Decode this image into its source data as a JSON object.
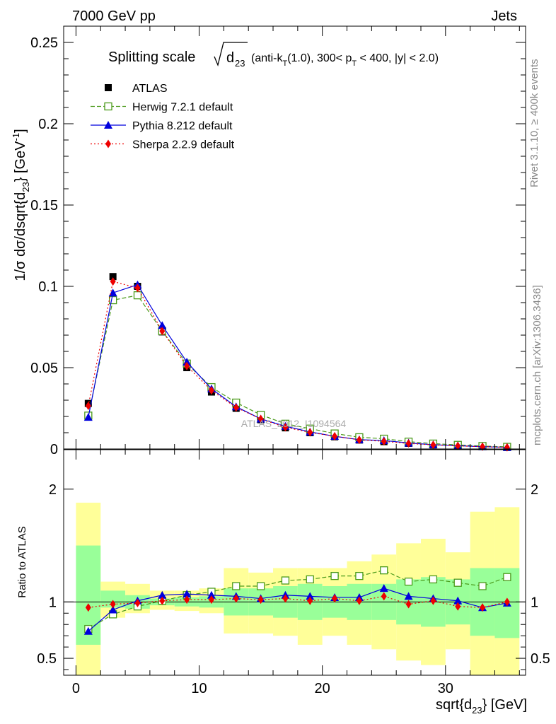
{
  "header": {
    "left": "7000 GeV pp",
    "right": "Jets"
  },
  "side_labels": {
    "rivet": "Rivet 3.1.10, ≥ 400k events",
    "mcplots": "mcplots.cern.ch [arXiv:1306.3436]"
  },
  "watermark": "ATLAS_2012_I1094564",
  "title": {
    "main": "Splitting scale",
    "radical_var": "d",
    "radical_sub": "23",
    "cuts_a": "(anti-k",
    "cuts_a_sub": "T",
    "cuts_b": "(1.0), 300< p",
    "cuts_b_sub": "T",
    "cuts_c": " < 400, |y| < 2.0)"
  },
  "axes": {
    "y_main_label_a": "1/σ dσ/dsqrt{d",
    "y_main_label_sub": "23",
    "y_main_label_b": "} [GeV",
    "y_main_label_sup": "-1",
    "y_main_label_c": "]",
    "y_ratio_label": "Ratio to ATLAS",
    "x_label_a": "sqrt{d",
    "x_label_sub": "23",
    "x_label_b": "} [GeV]"
  },
  "legend": [
    {
      "label": "ATLAS",
      "color": "#000000",
      "marker": "filled-square",
      "line": "none"
    },
    {
      "label": "Herwig 7.2.1 default",
      "color": "#4a9a1a",
      "marker": "open-square",
      "line": "dashed"
    },
    {
      "label": "Pythia 8.212 default",
      "color": "#0000dd",
      "marker": "filled-triangle",
      "line": "solid"
    },
    {
      "label": "Sherpa 2.2.9 default",
      "color": "#ee0000",
      "marker": "filled-diamond",
      "line": "dotted"
    }
  ],
  "chart_data": {
    "type": "line",
    "title": "Splitting scale √d23 (anti-kT(1.0), 300< pT < 400, |y| < 2.0)",
    "xlabel": "sqrt{d23} [GeV]",
    "ylabel": "1/σ dσ/dsqrt{d23} [GeV-1]",
    "xlim": [
      -1,
      36.5
    ],
    "ylim": [
      0,
      0.26
    ],
    "ratio_ylim": [
      0.35,
      2.35
    ],
    "x_ticks": [
      "0",
      "10",
      "20",
      "30"
    ],
    "y_ticks": [
      "0",
      "0.05",
      "0.1",
      "0.15",
      "0.2",
      "0.25"
    ],
    "ratio_ticks_left": [
      "0.5",
      "1",
      "2"
    ],
    "ratio_ticks_right": [
      "0.5",
      "1",
      "2"
    ],
    "legend_position": "top-left",
    "bin_edges": [
      0,
      2,
      4,
      6,
      8,
      10,
      12,
      14,
      16,
      18,
      20,
      22,
      24,
      26,
      28,
      30,
      32,
      34,
      36
    ],
    "x": [
      1,
      3,
      5,
      7,
      9,
      11,
      13,
      15,
      17,
      19,
      21,
      23,
      25,
      27,
      29,
      31,
      33,
      35
    ],
    "series": [
      {
        "name": "ATLAS",
        "values": [
          0.028,
          0.106,
          0.1,
          0.072,
          0.05,
          0.035,
          0.025,
          0.018,
          0.013,
          0.01,
          0.0075,
          0.0055,
          0.0045,
          0.0035,
          0.0025,
          0.002,
          0.0015,
          0.001
        ]
      },
      {
        "name": "Herwig 7.2.1 default",
        "values": [
          0.0205,
          0.0915,
          0.0945,
          0.0725,
          0.0525,
          0.038,
          0.0285,
          0.021,
          0.0155,
          0.0125,
          0.0095,
          0.0072,
          0.0063,
          0.0045,
          0.0033,
          0.0025,
          0.0018,
          0.0013
        ]
      },
      {
        "name": "Pythia 8.212 default",
        "values": [
          0.0195,
          0.096,
          0.101,
          0.076,
          0.0535,
          0.037,
          0.026,
          0.0185,
          0.014,
          0.0105,
          0.0078,
          0.0057,
          0.0052,
          0.0037,
          0.0026,
          0.002,
          0.0014,
          0.001
        ]
      },
      {
        "name": "Sherpa 2.2.9 default",
        "values": [
          0.0265,
          0.103,
          0.099,
          0.0725,
          0.051,
          0.036,
          0.0255,
          0.0185,
          0.0133,
          0.0102,
          0.0078,
          0.0056,
          0.0047,
          0.0034,
          0.0025,
          0.0019,
          0.0014,
          0.001
        ]
      }
    ],
    "ratio_series": [
      {
        "name": "Herwig 7.2.1 default",
        "values": [
          0.76,
          0.89,
          0.96,
          1.01,
          1.06,
          1.09,
          1.14,
          1.14,
          1.19,
          1.2,
          1.23,
          1.23,
          1.28,
          1.18,
          1.2,
          1.17,
          1.14,
          1.22
        ]
      },
      {
        "name": "Pythia 8.212 default",
        "values": [
          0.74,
          0.93,
          1.01,
          1.06,
          1.07,
          1.06,
          1.05,
          1.03,
          1.06,
          1.05,
          1.04,
          1.04,
          1.12,
          1.05,
          1.03,
          1.01,
          0.95,
          0.99
        ]
      },
      {
        "name": "Sherpa 2.2.9 default",
        "values": [
          0.95,
          0.98,
          0.99,
          1.01,
          1.02,
          1.02,
          1.03,
          1.02,
          1.03,
          1.01,
          1.03,
          1.01,
          1.05,
          0.98,
          1.01,
          0.96,
          0.95,
          1.0
        ]
      }
    ],
    "uncertainty_bands": {
      "stat_color": "#99ff99",
      "total_color": "#ffff99",
      "inner": [
        [
          0.62,
          1.5
        ],
        [
          0.95,
          1.1
        ],
        [
          0.94,
          1.06
        ],
        [
          0.97,
          1.03
        ],
        [
          0.96,
          1.04
        ],
        [
          0.95,
          1.05
        ],
        [
          0.88,
          1.12
        ],
        [
          0.88,
          1.12
        ],
        [
          0.86,
          1.14
        ],
        [
          0.84,
          1.16
        ],
        [
          0.86,
          1.14
        ],
        [
          0.84,
          1.16
        ],
        [
          0.84,
          1.16
        ],
        [
          0.8,
          1.2
        ],
        [
          0.78,
          1.22
        ],
        [
          0.8,
          1.2
        ],
        [
          0.7,
          1.3
        ],
        [
          0.68,
          1.3
        ]
      ],
      "outer": [
        [
          0.35,
          1.88
        ],
        [
          0.86,
          1.18
        ],
        [
          0.9,
          1.16
        ],
        [
          0.93,
          1.1
        ],
        [
          0.92,
          1.1
        ],
        [
          0.9,
          1.12
        ],
        [
          0.72,
          1.3
        ],
        [
          0.72,
          1.26
        ],
        [
          0.7,
          1.3
        ],
        [
          0.62,
          1.3
        ],
        [
          0.7,
          1.3
        ],
        [
          0.62,
          1.36
        ],
        [
          0.58,
          1.42
        ],
        [
          0.48,
          1.52
        ],
        [
          0.44,
          1.56
        ],
        [
          0.58,
          1.44
        ],
        [
          0.35,
          1.8
        ],
        [
          0.35,
          1.84
        ]
      ]
    }
  }
}
